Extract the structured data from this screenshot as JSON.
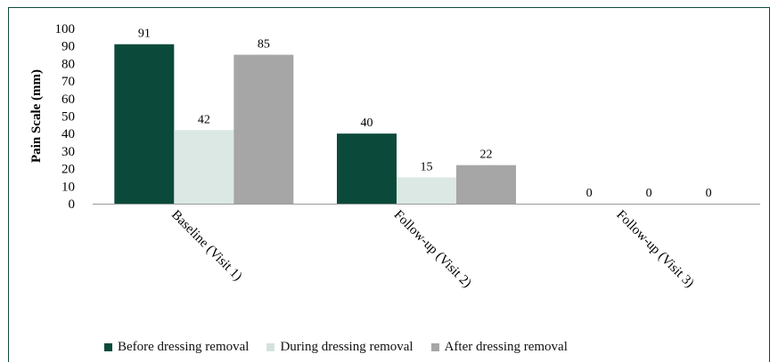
{
  "chart_data": {
    "type": "bar",
    "ylabel": "Pain Scale (mm)",
    "ylim": [
      0,
      100
    ],
    "yticks": [
      0,
      10,
      20,
      30,
      40,
      50,
      60,
      70,
      80,
      90,
      100
    ],
    "categories": [
      "Baseline (Visit 1)",
      "Follow-up (Visit 2)",
      "Follow-up (Visit 3)"
    ],
    "series": [
      {
        "name": "Before dressing removal",
        "color": "#0b4a3b",
        "values": [
          91,
          40,
          0
        ]
      },
      {
        "name": "During dressing removal",
        "color": "#dce8e3",
        "values": [
          42,
          15,
          0
        ]
      },
      {
        "name": "After dressing removal",
        "color": "#a6a6a6",
        "values": [
          85,
          22,
          0
        ]
      }
    ],
    "grid": false,
    "legend_position": "bottom"
  }
}
